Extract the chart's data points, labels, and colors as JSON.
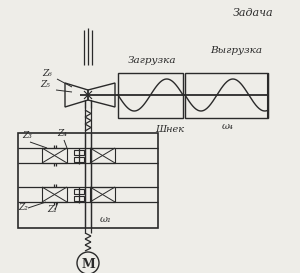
{
  "title_text": "Задача",
  "label_zagruzka": "Загрузка",
  "label_vygruzka": "Выгрузка",
  "label_shnek": "Шнек",
  "label_omega4": "ω₄",
  "label_omega1": "ω₁",
  "label_z1": "Z₁",
  "label_z2": "Z₂",
  "label_z3": "Z₃",
  "label_z4": "Z₄",
  "label_z5": "Z₅",
  "label_z6": "Z₆",
  "bg_color": "#eeede8",
  "line_color": "#2a2a2a",
  "line_width": 1.0
}
